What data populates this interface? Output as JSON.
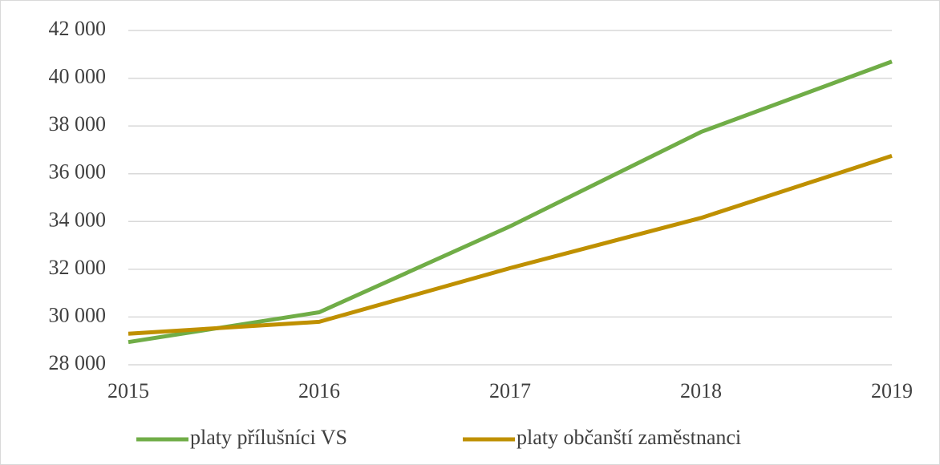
{
  "chart_data": {
    "type": "line",
    "categories": [
      "2015",
      "2016",
      "2017",
      "2018",
      "2019"
    ],
    "series": [
      {
        "name": "platy přílušníci VS",
        "color": "#70ad47",
        "values": [
          28950,
          30200,
          33800,
          37750,
          40700
        ]
      },
      {
        "name": "platy občanští zaměstnanci",
        "color": "#bf9000",
        "values": [
          29300,
          29800,
          32050,
          34150,
          36750
        ]
      }
    ],
    "ylim": [
      28000,
      42000
    ],
    "yticks": [
      {
        "value": 28000,
        "label": "28 000"
      },
      {
        "value": 30000,
        "label": "30 000"
      },
      {
        "value": 32000,
        "label": "32 000"
      },
      {
        "value": 34000,
        "label": "34 000"
      },
      {
        "value": 36000,
        "label": "36 000"
      },
      {
        "value": 38000,
        "label": "38 000"
      },
      {
        "value": 40000,
        "label": "40 000"
      },
      {
        "value": 42000,
        "label": "42 000"
      }
    ],
    "grid": true,
    "legend": "bottom"
  }
}
